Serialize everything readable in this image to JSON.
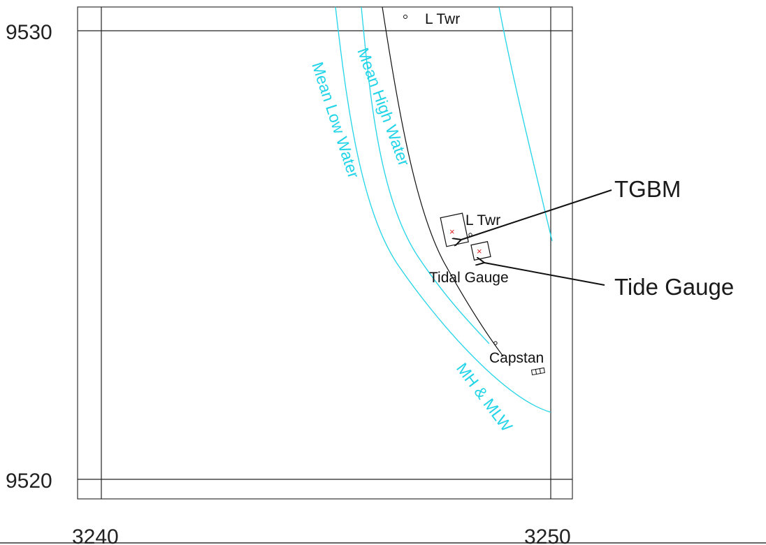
{
  "grid": {
    "northings": [
      "9530",
      "9520"
    ],
    "eastings": [
      "3240",
      "3250"
    ]
  },
  "features": {
    "tower_top": "L Twr",
    "tower_mid": "L Twr",
    "tidal_gauge": "Tidal Gauge",
    "capstan": "Capstan"
  },
  "water_lines": {
    "mean_low_water": "Mean Low Water",
    "mean_high_water": "Mean High Water",
    "mh_mlw": "MH & MLW"
  },
  "callouts": {
    "tgbm": "TGBM",
    "tide_gauge": "Tide Gauge"
  },
  "colors": {
    "water_line": "#22d4e8",
    "mark": "#e02020",
    "ink": "#111111"
  }
}
